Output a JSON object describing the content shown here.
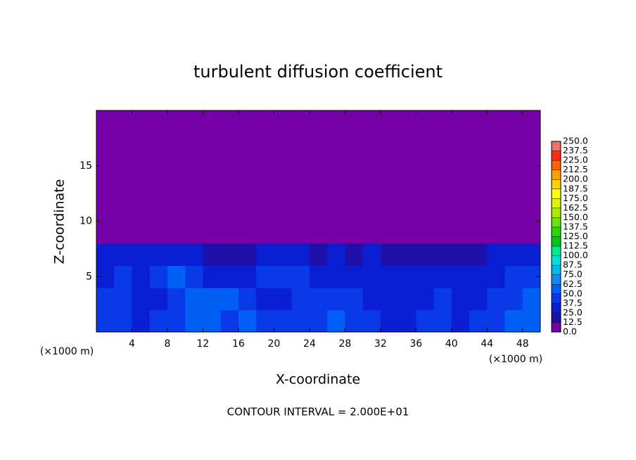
{
  "chart_data": {
    "type": "heatmap",
    "title": "turbulent diffusion coefficient",
    "x_label": "X-coordinate",
    "y_label": "Z-coordinate",
    "x_unit": "(×1000 m)",
    "x_unit_right": "(×1000 m)",
    "footer": "CONTOUR INTERVAL = 2.000E+01",
    "xlim": [
      0,
      50
    ],
    "ylim": [
      0,
      20
    ],
    "xticks": [
      4,
      8,
      12,
      16,
      20,
      24,
      28,
      32,
      36,
      40,
      44,
      48
    ],
    "yticks": [
      5,
      10,
      15
    ],
    "x": [
      1,
      3,
      5,
      7,
      9,
      11,
      13,
      15,
      17,
      19,
      21,
      23,
      25,
      27,
      29,
      31,
      33,
      35,
      37,
      39,
      41,
      43,
      45,
      47,
      49
    ],
    "y": [
      1,
      3,
      5,
      7,
      9,
      11,
      13,
      15,
      17,
      19
    ],
    "z": [
      [
        45,
        40,
        35,
        40,
        42,
        50,
        55,
        48,
        60,
        40,
        38,
        42,
        45,
        50,
        48,
        40,
        35,
        30,
        38,
        42,
        35,
        40,
        45,
        50,
        55
      ],
      [
        40,
        38,
        30,
        35,
        45,
        55,
        60,
        50,
        40,
        35,
        30,
        40,
        45,
        42,
        38,
        35,
        30,
        32,
        35,
        38,
        30,
        35,
        40,
        45,
        50
      ],
      [
        35,
        45,
        30,
        40,
        50,
        42,
        35,
        30,
        28,
        40,
        45,
        38,
        30,
        35,
        30,
        28,
        32,
        30,
        28,
        30,
        25,
        30,
        35,
        40,
        38
      ],
      [
        30,
        35,
        25,
        28,
        35,
        30,
        20,
        15,
        20,
        30,
        35,
        28,
        22,
        25,
        20,
        25,
        22,
        20,
        18,
        22,
        15,
        20,
        28,
        30,
        32
      ],
      [
        5,
        3,
        2,
        2,
        3,
        2,
        1,
        1,
        1,
        2,
        4,
        3,
        1,
        1,
        1,
        2,
        2,
        1,
        1,
        1,
        1,
        1,
        2,
        3,
        3
      ],
      [
        0,
        0,
        0,
        0,
        0,
        0,
        0,
        0,
        0,
        0,
        0,
        0,
        0,
        0,
        0,
        0,
        0,
        0,
        0,
        0,
        0,
        0,
        0,
        0,
        0
      ],
      [
        0,
        0,
        0,
        0,
        0,
        0,
        0,
        0,
        0,
        0,
        0,
        0,
        0,
        0,
        0,
        0,
        0,
        0,
        0,
        0,
        0,
        0,
        0,
        0,
        0
      ],
      [
        0,
        0,
        0,
        0,
        0,
        0,
        0,
        0,
        0,
        0,
        0,
        0,
        0,
        0,
        0,
        0,
        0,
        0,
        0,
        0,
        0,
        0,
        0,
        0,
        0
      ],
      [
        0,
        0,
        0,
        0,
        0,
        0,
        0,
        0,
        0,
        0,
        0,
        0,
        0,
        0,
        0,
        0,
        0,
        0,
        0,
        0,
        0,
        0,
        0,
        0,
        0
      ],
      [
        0,
        0,
        0,
        0,
        0,
        0,
        0,
        0,
        0,
        0,
        0,
        0,
        0,
        0,
        0,
        0,
        0,
        0,
        0,
        0,
        0,
        0,
        0,
        0,
        0
      ]
    ],
    "levels": [
      {
        "value": 0,
        "label": "0.0"
      },
      {
        "value": 12.5,
        "label": "12.5"
      },
      {
        "value": 25,
        "label": "25.0"
      },
      {
        "value": 37.5,
        "label": "37.5"
      },
      {
        "value": 50,
        "label": "50.0"
      },
      {
        "value": 62.5,
        "label": "62.5"
      },
      {
        "value": 75,
        "label": "75.0"
      },
      {
        "value": 87.5,
        "label": "87.5"
      },
      {
        "value": 100,
        "label": "100.0"
      },
      {
        "value": 112.5,
        "label": "112.5"
      },
      {
        "value": 125,
        "label": "125.0"
      },
      {
        "value": 137.5,
        "label": "137.5"
      },
      {
        "value": 150,
        "label": "150.0"
      },
      {
        "value": 162.5,
        "label": "162.5"
      },
      {
        "value": 175,
        "label": "175.0"
      },
      {
        "value": 187.5,
        "label": "187.5"
      },
      {
        "value": 200,
        "label": "200.0"
      },
      {
        "value": 212.5,
        "label": "212.5"
      },
      {
        "value": 225,
        "label": "225.0"
      },
      {
        "value": 237.5,
        "label": "237.5"
      },
      {
        "value": 250,
        "label": "250.0"
      }
    ],
    "colors": [
      "#7800a8",
      "#1e10a8",
      "#0a1ed2",
      "#0a3ae8",
      "#0060f5",
      "#0a8cf5",
      "#00b8f0",
      "#00e0d8",
      "#00e890",
      "#00c814",
      "#28d800",
      "#68e400",
      "#a8ec00",
      "#e0f400",
      "#ffff00",
      "#ffd000",
      "#ffa000",
      "#ff6400",
      "#ff2a14",
      "#f07070"
    ]
  }
}
